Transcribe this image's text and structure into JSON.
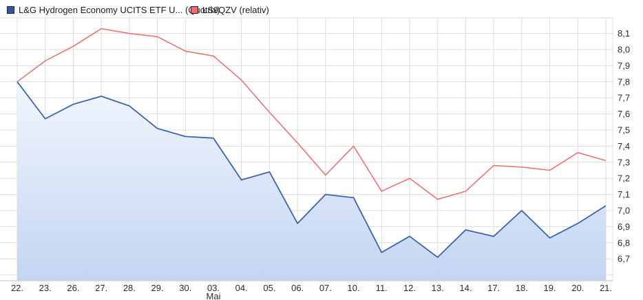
{
  "legend": {
    "items": [
      {
        "label": "L&G Hydrogen Economy UCITS ETF U... (Quotrix)",
        "marker_color": "#35549f"
      },
      {
        "label": "LS9QZV (relativ)",
        "marker_color": "#f4696b"
      }
    ]
  },
  "chart_data": {
    "type": "line",
    "title": "",
    "xlabel": "",
    "ylabel": "",
    "x_tick_labels": [
      "22.",
      "23.",
      "26.",
      "27.",
      "28.",
      "29.",
      "30.",
      "03.",
      "04.",
      "05.",
      "06.",
      "07.",
      "10.",
      "11.",
      "12.",
      "13.",
      "14.",
      "17.",
      "18.",
      "19.",
      "20.",
      "21."
    ],
    "x_month_label": {
      "text": "Mai",
      "under_index": 7
    },
    "series": [
      {
        "name": "L&G Hydrogen Economy UCITS ETF U... (Quotrix)",
        "color": "#3a64ad",
        "fill": true,
        "values": [
          7.8,
          7.57,
          7.66,
          7.71,
          7.65,
          7.51,
          7.46,
          7.45,
          7.19,
          7.24,
          6.92,
          7.1,
          7.08,
          6.74,
          6.84,
          6.71,
          6.88,
          6.84,
          7.0,
          6.83,
          6.92,
          7.03
        ]
      },
      {
        "name": "LS9QZV (relativ)",
        "color": "#f4696b",
        "fill": false,
        "values": [
          7.8,
          7.93,
          8.02,
          8.13,
          8.1,
          8.08,
          7.99,
          7.96,
          7.81,
          7.61,
          7.42,
          7.22,
          7.4,
          7.12,
          7.2,
          7.07,
          7.12,
          7.28,
          7.27,
          7.25,
          7.36,
          7.31
        ]
      }
    ],
    "y_ticks": [
      8.1,
      8.0,
      7.9,
      7.8,
      7.7,
      7.6,
      7.5,
      7.4,
      7.3,
      7.2,
      7.1,
      7.0,
      6.9,
      6.8,
      6.7
    ],
    "y_tick_labels": [
      "8,1",
      "8,0",
      "7,9",
      "7,8",
      "7,7",
      "7,6",
      "7,5",
      "7,4",
      "7,3",
      "7,2",
      "7,1",
      "7,0",
      "6,9",
      "6,8",
      "6,7"
    ],
    "ylim": [
      6.56,
      8.19
    ],
    "grid": true,
    "legend_position": "top-left",
    "colors": {
      "grid": "#dcdcdc",
      "axis_text": "#2b2b2b",
      "area_top": "#f2f6fd",
      "area_bottom": "#c3d5f2",
      "bottom_border": "#bfbfbf"
    }
  }
}
